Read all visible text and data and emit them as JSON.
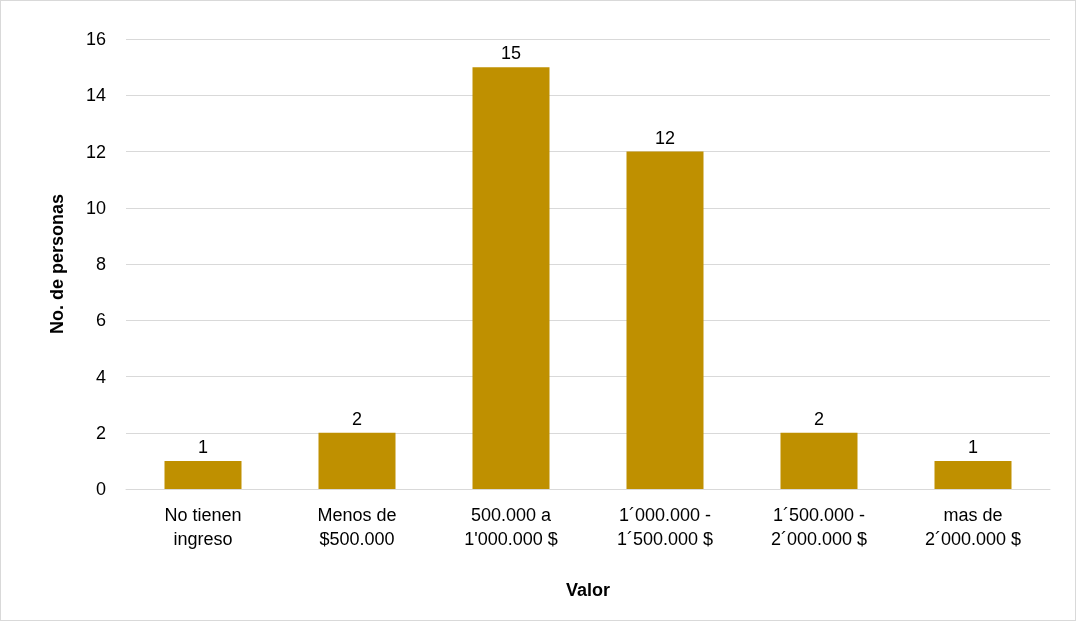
{
  "chart_data": {
    "type": "bar",
    "xlabel": "Valor",
    "ylabel": "No. de personas",
    "categories": [
      "No tienen\ningreso",
      "Menos de\n$500.000",
      "500.000 a\n1'000.000 $",
      "1´000.000 -\n1´500.000 $",
      "1´500.000 -\n2´000.000 $",
      "mas de\n2´000.000 $"
    ],
    "values": [
      1,
      2,
      15,
      12,
      2,
      1
    ],
    "color": "#bf9000",
    "ylim": [
      0,
      16
    ],
    "yticks": [
      0,
      2,
      4,
      6,
      8,
      10,
      12,
      14,
      16
    ],
    "grid": "y",
    "data_labels": true
  }
}
